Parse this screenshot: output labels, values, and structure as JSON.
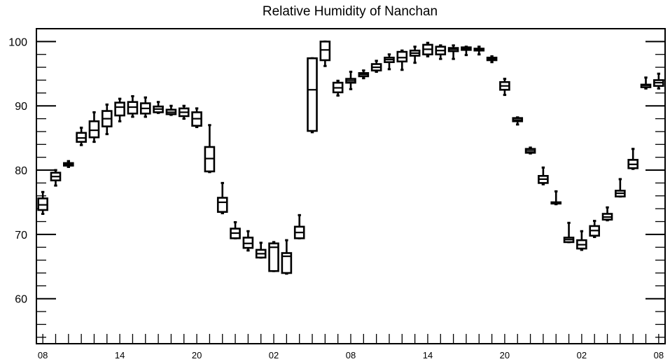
{
  "chart_data": {
    "type": "box",
    "title": "Relative Humidity of Nanchan",
    "xlabel": "",
    "ylabel": "",
    "ylim": [
      53,
      102
    ],
    "yticks": [
      60,
      70,
      80,
      90,
      100
    ],
    "xlim": [
      -0.5,
      48.5
    ],
    "xtick_labels": [
      {
        "x": 0,
        "label": "08"
      },
      {
        "x": 6,
        "label": "14"
      },
      {
        "x": 12,
        "label": "20"
      },
      {
        "x": 18,
        "label": "02"
      },
      {
        "x": 24,
        "label": "08"
      },
      {
        "x": 30,
        "label": "14"
      },
      {
        "x": 36,
        "label": "20"
      },
      {
        "x": 42,
        "label": "02"
      },
      {
        "x": 48,
        "label": "08"
      }
    ],
    "boxes": [
      {
        "x": 0,
        "whislo": 73.2,
        "q1": 73.8,
        "med": 74.6,
        "q3": 75.6,
        "whishi": 76.6
      },
      {
        "x": 1,
        "whislo": 77.6,
        "q1": 78.4,
        "med": 79.0,
        "q3": 79.6,
        "whishi": 80.0
      },
      {
        "x": 2,
        "whislo": 80.5,
        "q1": 80.7,
        "med": 80.9,
        "q3": 81.1,
        "whishi": 81.4
      },
      {
        "x": 3,
        "whislo": 83.9,
        "q1": 84.4,
        "med": 85.0,
        "q3": 85.8,
        "whishi": 86.6
      },
      {
        "x": 4,
        "whislo": 84.4,
        "q1": 85.1,
        "med": 86.2,
        "q3": 87.6,
        "whishi": 89.0
      },
      {
        "x": 5,
        "whislo": 85.6,
        "q1": 86.8,
        "med": 88.0,
        "q3": 89.2,
        "whishi": 90.2
      },
      {
        "x": 6,
        "whislo": 87.6,
        "q1": 88.5,
        "med": 89.8,
        "q3": 90.5,
        "whishi": 91.1
      },
      {
        "x": 7,
        "whislo": 88.3,
        "q1": 88.8,
        "med": 89.8,
        "q3": 90.6,
        "whishi": 91.5
      },
      {
        "x": 8,
        "whislo": 88.3,
        "q1": 88.8,
        "med": 89.6,
        "q3": 90.4,
        "whishi": 91.3
      },
      {
        "x": 9,
        "whislo": 88.9,
        "q1": 89.0,
        "med": 89.5,
        "q3": 89.9,
        "whishi": 90.6
      },
      {
        "x": 10,
        "whislo": 88.6,
        "q1": 88.7,
        "med": 89.0,
        "q3": 89.4,
        "whishi": 90.0
      },
      {
        "x": 11,
        "whislo": 88.0,
        "q1": 88.4,
        "med": 89.0,
        "q3": 89.6,
        "whishi": 90.0
      },
      {
        "x": 12,
        "whislo": 86.7,
        "q1": 86.9,
        "med": 88.0,
        "q3": 89.0,
        "whishi": 89.6
      },
      {
        "x": 13,
        "whislo": 79.7,
        "q1": 79.8,
        "med": 81.8,
        "q3": 83.6,
        "whishi": 87.0
      },
      {
        "x": 14,
        "whislo": 73.3,
        "q1": 73.5,
        "med": 75.0,
        "q3": 75.7,
        "whishi": 78.0
      },
      {
        "x": 15,
        "whislo": 69.4,
        "q1": 69.4,
        "med": 70.2,
        "q3": 70.9,
        "whishi": 71.9
      },
      {
        "x": 16,
        "whislo": 67.5,
        "q1": 67.9,
        "med": 68.6,
        "q3": 69.5,
        "whishi": 70.5
      },
      {
        "x": 17,
        "whislo": 66.4,
        "q1": 66.4,
        "med": 67.0,
        "q3": 67.6,
        "whishi": 68.7
      },
      {
        "x": 18,
        "whislo": 64.3,
        "q1": 64.3,
        "med": 68.0,
        "q3": 68.6,
        "whishi": 68.8
      },
      {
        "x": 19,
        "whislo": 63.9,
        "q1": 64.0,
        "med": 66.6,
        "q3": 67.1,
        "whishi": 69.1
      },
      {
        "x": 20,
        "whislo": 69.4,
        "q1": 69.4,
        "med": 70.3,
        "q3": 71.2,
        "whishi": 73.0
      },
      {
        "x": 21,
        "whislo": 85.9,
        "q1": 86.1,
        "med": 92.5,
        "q3": 97.4,
        "whishi": 97.4
      },
      {
        "x": 22,
        "whislo": 96.2,
        "q1": 97.1,
        "med": 98.7,
        "q3": 100.0,
        "whishi": 100.0
      },
      {
        "x": 23,
        "whislo": 91.6,
        "q1": 92.1,
        "med": 92.8,
        "q3": 93.6,
        "whishi": 93.9
      },
      {
        "x": 24,
        "whislo": 92.6,
        "q1": 93.6,
        "med": 93.9,
        "q3": 94.2,
        "whishi": 95.3
      },
      {
        "x": 25,
        "whislo": 94.3,
        "q1": 94.6,
        "med": 94.9,
        "q3": 95.1,
        "whishi": 95.5
      },
      {
        "x": 26,
        "whislo": 95.3,
        "q1": 95.5,
        "med": 96.0,
        "q3": 96.5,
        "whishi": 97.0
      },
      {
        "x": 27,
        "whislo": 95.7,
        "q1": 96.8,
        "med": 97.2,
        "q3": 97.5,
        "whishi": 98.0
      },
      {
        "x": 28,
        "whislo": 95.6,
        "q1": 96.9,
        "med": 97.5,
        "q3": 98.4,
        "whishi": 98.6
      },
      {
        "x": 29,
        "whislo": 96.7,
        "q1": 97.8,
        "med": 98.2,
        "q3": 98.6,
        "whishi": 99.2
      },
      {
        "x": 30,
        "whislo": 97.7,
        "q1": 98.0,
        "med": 98.8,
        "q3": 99.5,
        "whishi": 99.8
      },
      {
        "x": 31,
        "whislo": 97.3,
        "q1": 98.0,
        "med": 98.6,
        "q3": 99.2,
        "whishi": 99.4
      },
      {
        "x": 32,
        "whislo": 97.3,
        "q1": 98.5,
        "med": 98.8,
        "q3": 99.0,
        "whishi": 99.4
      },
      {
        "x": 33,
        "whislo": 97.9,
        "q1": 98.7,
        "med": 98.9,
        "q3": 99.1,
        "whishi": 99.2
      },
      {
        "x": 34,
        "whislo": 98.0,
        "q1": 98.6,
        "med": 98.8,
        "q3": 98.9,
        "whishi": 99.2
      },
      {
        "x": 35,
        "whislo": 96.8,
        "q1": 97.1,
        "med": 97.3,
        "q3": 97.5,
        "whishi": 97.7
      },
      {
        "x": 36,
        "whislo": 91.7,
        "q1": 92.5,
        "med": 93.1,
        "q3": 93.7,
        "whishi": 94.2
      },
      {
        "x": 37,
        "whislo": 87.1,
        "q1": 87.6,
        "med": 87.8,
        "q3": 88.1,
        "whishi": 88.2
      },
      {
        "x": 38,
        "whislo": 82.6,
        "q1": 82.7,
        "med": 83.0,
        "q3": 83.3,
        "whishi": 83.5
      },
      {
        "x": 39,
        "whislo": 77.8,
        "q1": 78.0,
        "med": 78.6,
        "q3": 79.1,
        "whishi": 80.4
      },
      {
        "x": 40,
        "whislo": 74.7,
        "q1": 74.8,
        "med": 74.9,
        "q3": 75.0,
        "whishi": 76.7
      },
      {
        "x": 41,
        "whislo": 68.8,
        "q1": 68.8,
        "med": 69.2,
        "q3": 69.5,
        "whishi": 71.8
      },
      {
        "x": 42,
        "whislo": 67.6,
        "q1": 67.8,
        "med": 68.4,
        "q3": 69.1,
        "whishi": 70.5
      },
      {
        "x": 43,
        "whislo": 69.6,
        "q1": 69.8,
        "med": 70.6,
        "q3": 71.3,
        "whishi": 72.1
      },
      {
        "x": 44,
        "whislo": 72.2,
        "q1": 72.3,
        "med": 72.7,
        "q3": 73.2,
        "whishi": 74.2
      },
      {
        "x": 45,
        "whislo": 75.9,
        "q1": 75.9,
        "med": 76.4,
        "q3": 76.8,
        "whishi": 78.6
      },
      {
        "x": 46,
        "whislo": 80.2,
        "q1": 80.3,
        "med": 80.9,
        "q3": 81.6,
        "whishi": 83.3
      },
      {
        "x": 47,
        "whislo": 92.7,
        "q1": 92.9,
        "med": 93.2,
        "q3": 93.3,
        "whishi": 94.4
      },
      {
        "x": 48,
        "whislo": 92.7,
        "q1": 93.1,
        "med": 93.6,
        "q3": 94.0,
        "whishi": 95.0
      }
    ]
  }
}
